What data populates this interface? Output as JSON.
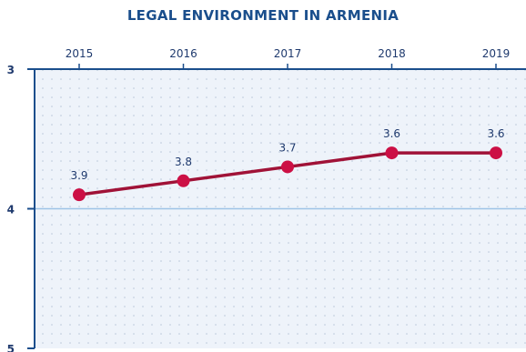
{
  "colors": {
    "title": "#1a4e8c",
    "axis": "#1a4e8c",
    "plot_background": "#eef3fa",
    "grid_dots": "#b9c6d8",
    "midline": "#9dc3e6",
    "series_line": "#a01237",
    "series_marker": "#cc1045",
    "text": "#1f3a6e"
  },
  "chart_data": {
    "type": "line",
    "title": "LEGAL ENVIRONMENT IN ARMENIA",
    "xlabel": "",
    "ylabel": "",
    "x_axis_position": "top",
    "y_inverted": true,
    "ylim": [
      3,
      5
    ],
    "y_ticks": [
      "3",
      "4",
      "5"
    ],
    "categories": [
      "2015",
      "2016",
      "2017",
      "2018",
      "2019"
    ],
    "series": [
      {
        "values": [
          3.9,
          3.8,
          3.7,
          3.6,
          3.6
        ],
        "labels": [
          "3.9",
          "3.8",
          "3.7",
          "3.6",
          "3.6"
        ]
      }
    ],
    "grid": "dotted",
    "legend": "none"
  }
}
